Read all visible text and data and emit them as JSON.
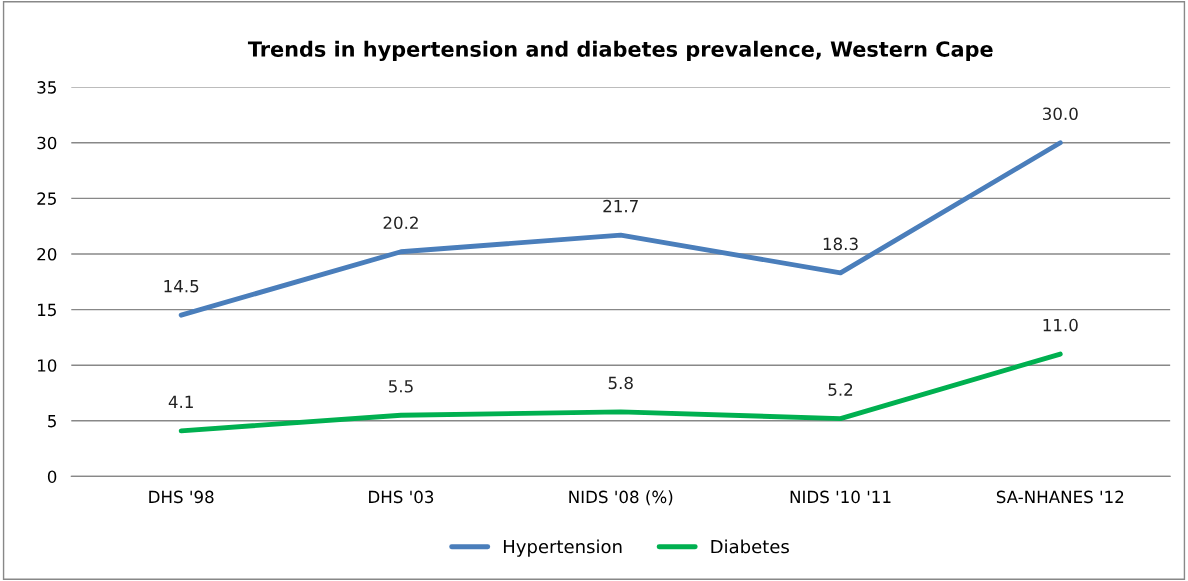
{
  "chart_data": {
    "type": "line",
    "title": "Trends in hypertension and diabetes prevalence, Western Cape",
    "categories": [
      "DHS '98",
      "DHS '03",
      "NIDS '08 (%)",
      "NIDS '10 '11",
      "SA-NHANES '12"
    ],
    "series": [
      {
        "name": "Hypertension",
        "color": "#4a7ebb",
        "values": [
          14.5,
          20.2,
          21.7,
          18.3,
          30.0
        ],
        "value_labels": [
          "14.5",
          "20.2",
          "21.7",
          "18.3",
          "30.0"
        ]
      },
      {
        "name": "Diabetes",
        "color": "#00b050",
        "values": [
          4.1,
          5.5,
          5.8,
          5.2,
          11.0
        ],
        "value_labels": [
          "4.1",
          "5.5",
          "5.8",
          "5.2",
          "11.0"
        ]
      }
    ],
    "ylim": [
      0,
      35
    ],
    "yticks": [
      0,
      5,
      10,
      15,
      20,
      25,
      30,
      35
    ],
    "grid": "y",
    "legend": "bottom",
    "marker": "none",
    "line_style": "solid"
  }
}
